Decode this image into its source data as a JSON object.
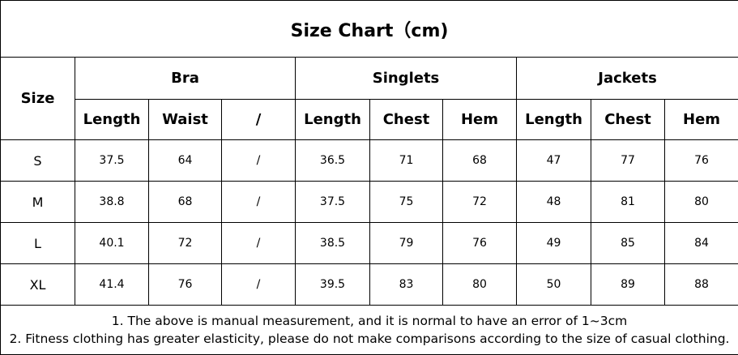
{
  "title": "Size Chart（cm)",
  "size_header": "Size",
  "groups": [
    "Bra",
    "Singlets",
    "Jackets"
  ],
  "subheaders": [
    "Length",
    "Waist",
    "/",
    "Length",
    "Chest",
    "Hem",
    "Length",
    "Chest",
    "Hem"
  ],
  "rows": [
    [
      "S",
      "37.5",
      "64",
      "/",
      "36.5",
      "71",
      "68",
      "47",
      "77",
      "76"
    ],
    [
      "M",
      "38.8",
      "68",
      "/",
      "37.5",
      "75",
      "72",
      "48",
      "81",
      "80"
    ],
    [
      "L",
      "40.1",
      "72",
      "/",
      "38.5",
      "79",
      "76",
      "49",
      "85",
      "84"
    ],
    [
      "XL",
      "41.4",
      "76",
      "/",
      "39.5",
      "83",
      "80",
      "50",
      "89",
      "88"
    ]
  ],
  "notes": [
    "1. The above is manual measurement, and it is normal to have an error of 1~3cm",
    "2. Fitness clothing has greater elasticity, please do not make comparisons according to the size of casual clothing."
  ]
}
